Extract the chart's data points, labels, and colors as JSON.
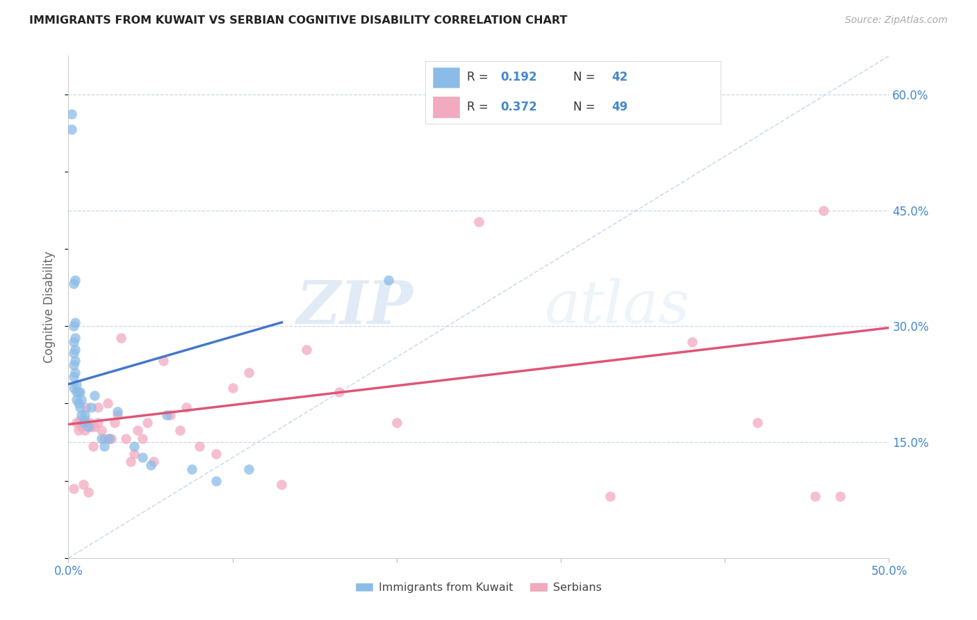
{
  "title": "IMMIGRANTS FROM KUWAIT VS SERBIAN COGNITIVE DISABILITY CORRELATION CHART",
  "source": "Source: ZipAtlas.com",
  "ylabel": "Cognitive Disability",
  "xlim": [
    0.0,
    0.5
  ],
  "ylim": [
    0.0,
    0.65
  ],
  "yticks_right": [
    0.15,
    0.3,
    0.45,
    0.6
  ],
  "yticklabels_right": [
    "15.0%",
    "30.0%",
    "45.0%",
    "60.0%"
  ],
  "kuwait_R": 0.192,
  "kuwait_N": 42,
  "serbian_R": 0.372,
  "serbian_N": 49,
  "kuwait_color": "#8bbce8",
  "serbian_color": "#f2aabf",
  "kuwait_line_color": "#4477cc",
  "serbian_line_color": "#dd5577",
  "dashed_line_color": "#c0d4ec",
  "watermark_color": "#ddeaf8",
  "kuwait_line_x": [
    0.0,
    0.13
  ],
  "kuwait_line_y": [
    0.225,
    0.305
  ],
  "serbian_line_x": [
    0.0,
    0.5
  ],
  "serbian_line_y": [
    0.173,
    0.298
  ],
  "kuwait_points_x": [
    0.002,
    0.002,
    0.003,
    0.003,
    0.003,
    0.003,
    0.003,
    0.003,
    0.003,
    0.004,
    0.004,
    0.004,
    0.004,
    0.004,
    0.004,
    0.005,
    0.005,
    0.005,
    0.006,
    0.006,
    0.007,
    0.007,
    0.008,
    0.008,
    0.009,
    0.01,
    0.01,
    0.012,
    0.014,
    0.016,
    0.02,
    0.022,
    0.025,
    0.03,
    0.04,
    0.045,
    0.05,
    0.06,
    0.075,
    0.09,
    0.11,
    0.195
  ],
  "kuwait_points_y": [
    0.575,
    0.555,
    0.355,
    0.3,
    0.28,
    0.265,
    0.25,
    0.235,
    0.22,
    0.36,
    0.305,
    0.285,
    0.27,
    0.255,
    0.24,
    0.225,
    0.215,
    0.205,
    0.215,
    0.2,
    0.215,
    0.195,
    0.205,
    0.185,
    0.175,
    0.185,
    0.178,
    0.17,
    0.195,
    0.21,
    0.155,
    0.145,
    0.155,
    0.19,
    0.145,
    0.13,
    0.12,
    0.185,
    0.115,
    0.1,
    0.115,
    0.36
  ],
  "serbian_points_x": [
    0.003,
    0.005,
    0.006,
    0.007,
    0.008,
    0.009,
    0.01,
    0.011,
    0.012,
    0.013,
    0.014,
    0.015,
    0.016,
    0.018,
    0.018,
    0.02,
    0.022,
    0.024,
    0.025,
    0.026,
    0.028,
    0.03,
    0.032,
    0.035,
    0.038,
    0.04,
    0.042,
    0.045,
    0.048,
    0.052,
    0.058,
    0.062,
    0.068,
    0.072,
    0.08,
    0.09,
    0.1,
    0.11,
    0.13,
    0.145,
    0.165,
    0.2,
    0.25,
    0.33,
    0.38,
    0.42,
    0.455,
    0.46,
    0.47
  ],
  "serbian_points_y": [
    0.09,
    0.175,
    0.165,
    0.178,
    0.17,
    0.095,
    0.165,
    0.195,
    0.085,
    0.175,
    0.17,
    0.145,
    0.17,
    0.195,
    0.175,
    0.165,
    0.155,
    0.2,
    0.155,
    0.155,
    0.175,
    0.185,
    0.285,
    0.155,
    0.125,
    0.135,
    0.165,
    0.155,
    0.175,
    0.125,
    0.255,
    0.185,
    0.165,
    0.195,
    0.145,
    0.135,
    0.22,
    0.24,
    0.095,
    0.27,
    0.215,
    0.175,
    0.435,
    0.08,
    0.28,
    0.175,
    0.08,
    0.45,
    0.08
  ]
}
